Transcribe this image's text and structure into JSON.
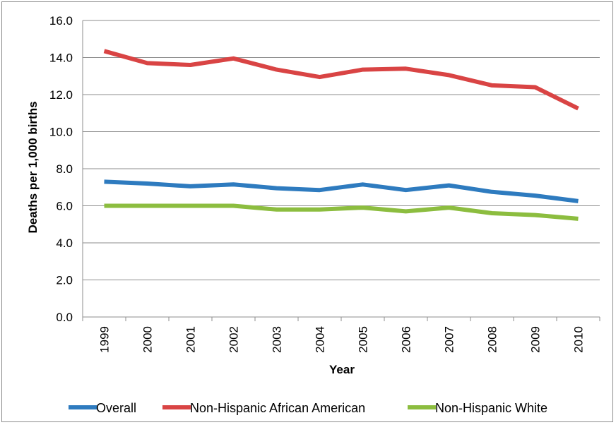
{
  "chart_data": {
    "type": "line",
    "title": "",
    "xlabel": "Year",
    "ylabel": "Deaths per 1,000 births",
    "ylim": [
      0,
      16
    ],
    "yticks": [
      "0.0",
      "2.0",
      "4.0",
      "6.0",
      "8.0",
      "10.0",
      "12.0",
      "14.0",
      "16.0"
    ],
    "categories": [
      "1999",
      "2000",
      "2001",
      "2002",
      "2003",
      "2004",
      "2005",
      "2006",
      "2007",
      "2008",
      "2009",
      "2010"
    ],
    "grid": true,
    "legend_position": "bottom",
    "series": [
      {
        "name": "Overall",
        "color": "#2e7bbf",
        "values": [
          7.3,
          7.2,
          7.05,
          7.15,
          6.95,
          6.85,
          7.15,
          6.85,
          7.1,
          6.75,
          6.55,
          6.25
        ]
      },
      {
        "name": "Non-Hispanic African American",
        "color": "#d94444",
        "values": [
          14.35,
          13.7,
          13.6,
          13.95,
          13.35,
          12.95,
          13.35,
          13.4,
          13.05,
          12.5,
          12.4,
          11.25
        ]
      },
      {
        "name": "Non-Hispanic White",
        "color": "#8cbd3f",
        "values": [
          6.0,
          6.0,
          6.0,
          6.0,
          5.8,
          5.8,
          5.9,
          5.7,
          5.9,
          5.6,
          5.5,
          5.3
        ]
      }
    ]
  }
}
